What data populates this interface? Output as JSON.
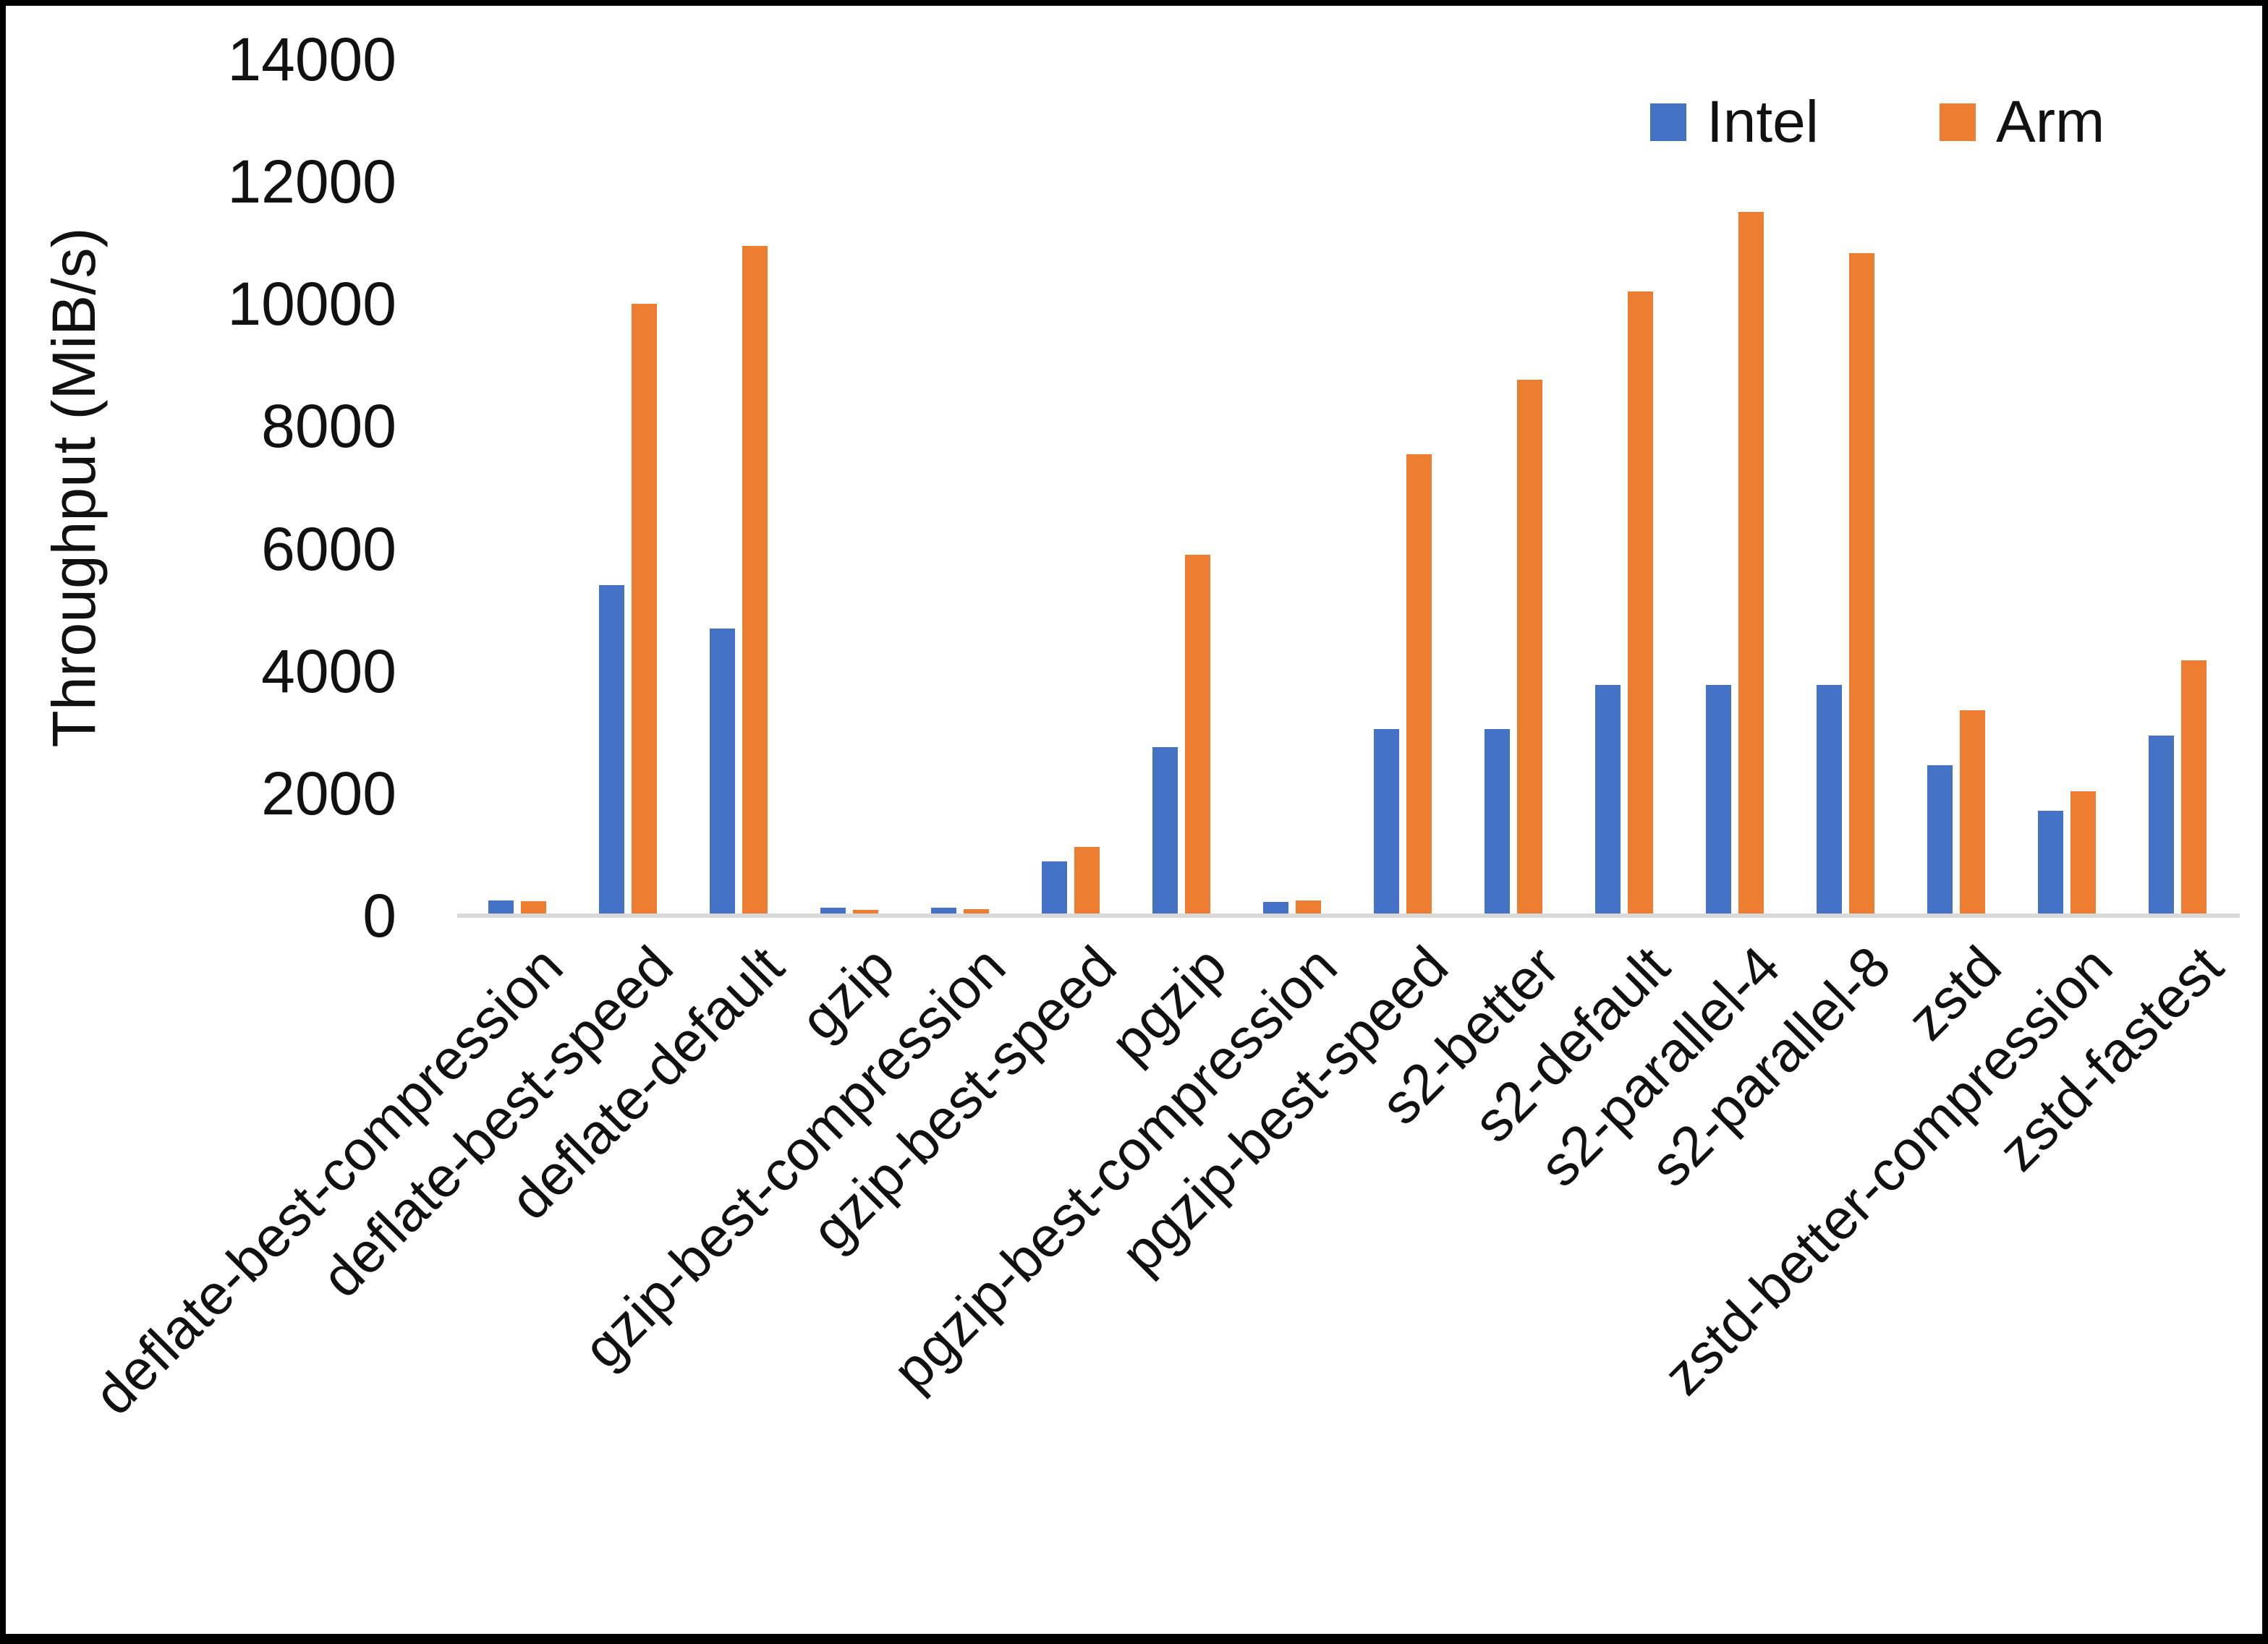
{
  "chart_data": {
    "type": "bar",
    "title": "",
    "xlabel": "",
    "ylabel": "Throughput (MiB/s)",
    "ylim": [
      0,
      14000
    ],
    "yticks": [
      0,
      2000,
      4000,
      6000,
      8000,
      10000,
      12000,
      14000
    ],
    "grid": false,
    "legend_position": "top-right",
    "categories": [
      "deflate-best-compression",
      "deflate-best-speed",
      "deflate-default",
      "gzip",
      "gzip-best-compression",
      "gzip-best-speed",
      "pgzip",
      "pgzip-best-compression",
      "pgzip-best-speed",
      "s2-better",
      "s2-default",
      "s2-parallel-4",
      "s2-parallel-8",
      "zstd",
      "zstd-better-compression",
      "zstd-fastest"
    ],
    "series": [
      {
        "name": "Intel",
        "color": "#4472C4",
        "values": [
          250,
          5400,
          4700,
          130,
          130,
          890,
          2750,
          225,
          3050,
          3050,
          3770,
          3770,
          3770,
          2460,
          1715,
          2945
        ]
      },
      {
        "name": "Arm",
        "color": "#ED7D31",
        "values": [
          240,
          10000,
          10950,
          90,
          105,
          1120,
          5900,
          250,
          7550,
          8760,
          10210,
          11510,
          10830,
          3360,
          2035,
          4175
        ]
      }
    ],
    "axis_line_color": "#D9D9D9"
  }
}
